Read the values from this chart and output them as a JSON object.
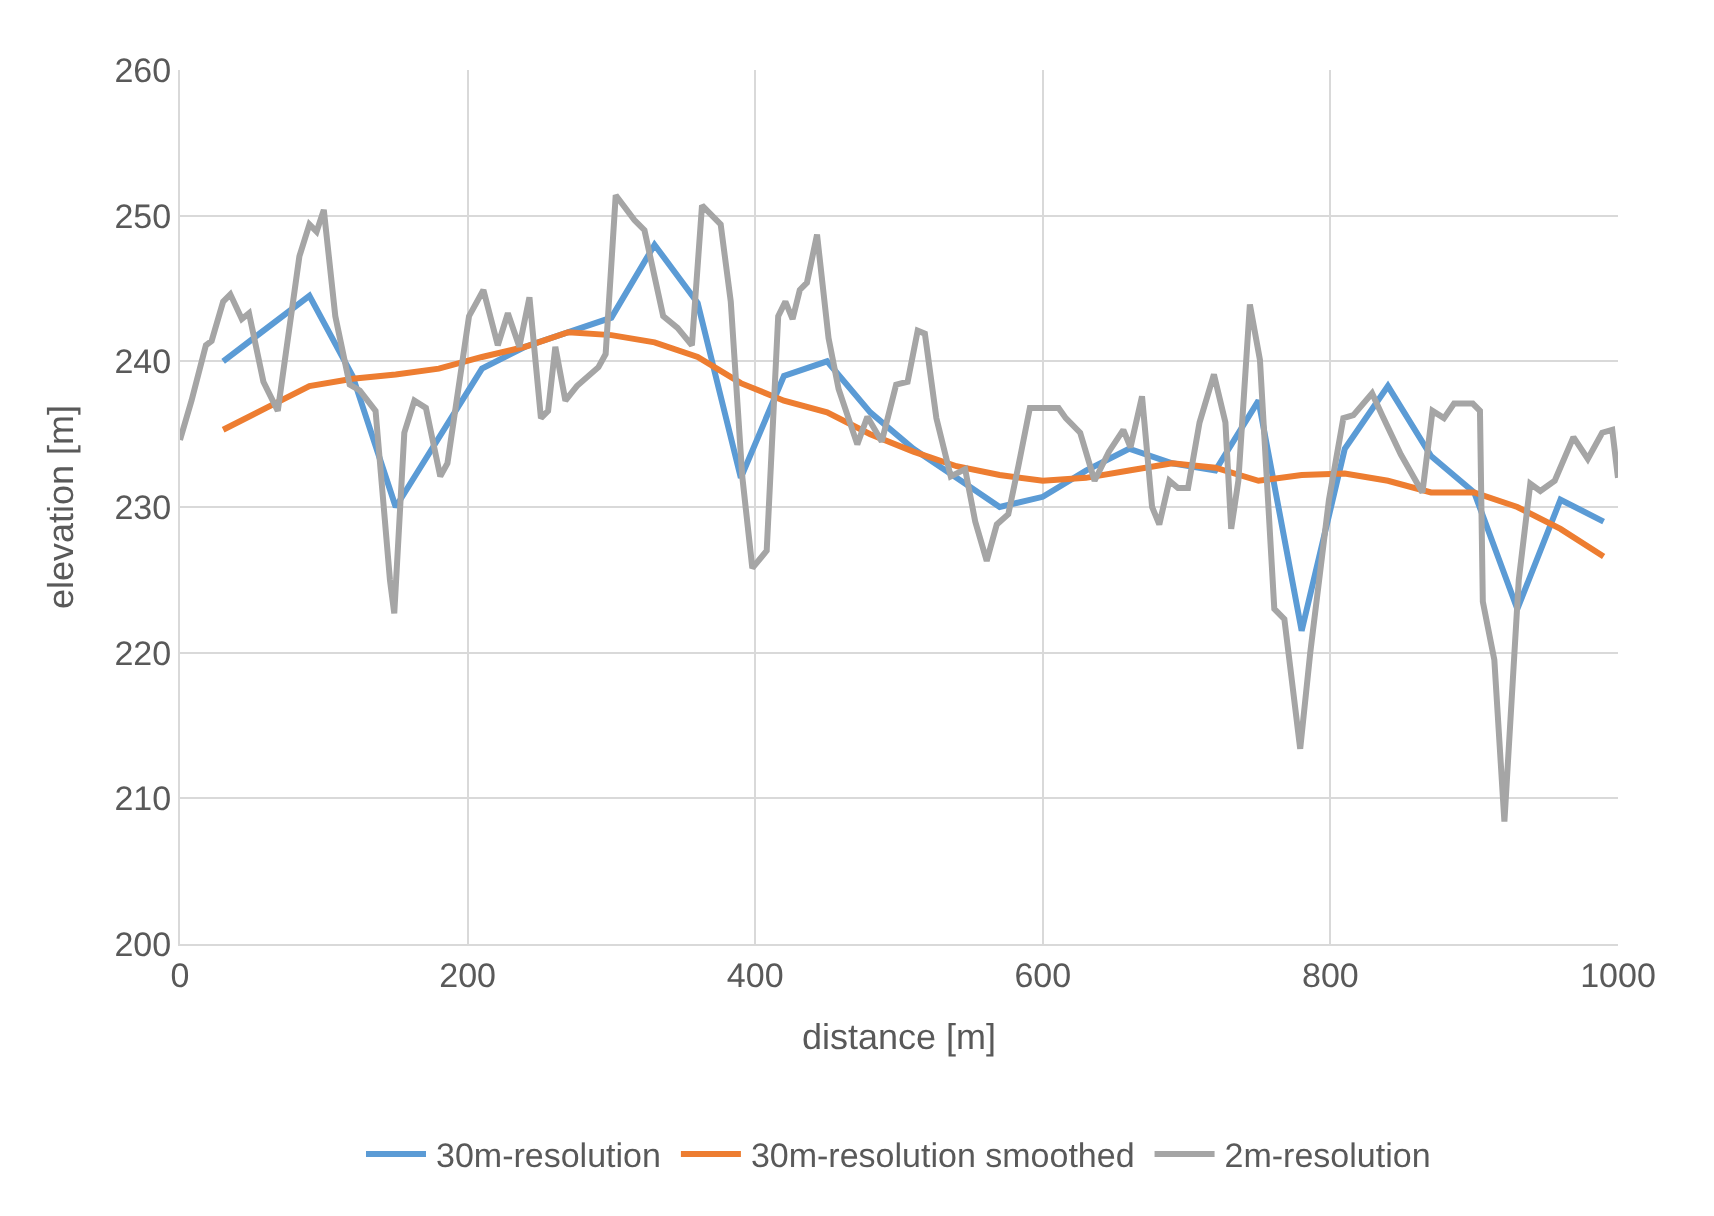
{
  "chart_data": {
    "type": "line",
    "xlabel": "distance [m]",
    "ylabel": "elevation [m]",
    "xlim": [
      0,
      1000
    ],
    "xticks": [
      0,
      200,
      400,
      600,
      800,
      1000
    ],
    "ylim": [
      200,
      260
    ],
    "yticks": [
      200,
      210,
      220,
      230,
      240,
      250,
      260
    ],
    "grid": true,
    "legend": "bottom",
    "marker": "none",
    "line_style": "solid",
    "series": [
      {
        "name": "30m-resolution",
        "color": "#5b9bd5",
        "x": [
          30,
          90,
          120,
          150,
          210,
          240,
          300,
          330,
          360,
          390,
          420,
          450,
          480,
          510,
          540,
          570,
          600,
          630,
          660,
          690,
          720,
          750,
          780,
          810,
          840,
          870,
          900,
          930,
          960,
          990
        ],
        "values": [
          240,
          244.5,
          239,
          230,
          239.5,
          241,
          243,
          248,
          244,
          232,
          239,
          240,
          236.5,
          234,
          232,
          230,
          230.7,
          232.5,
          234,
          233,
          232.5,
          237.3,
          221.5,
          234,
          238.3,
          233.5,
          231,
          223,
          230.5,
          229
        ]
      },
      {
        "name": "30m-resolution smoothed",
        "color": "#ed7d31",
        "x": [
          30,
          60,
          90,
          120,
          150,
          180,
          210,
          240,
          270,
          300,
          330,
          360,
          390,
          420,
          450,
          480,
          510,
          540,
          570,
          600,
          630,
          660,
          690,
          720,
          750,
          780,
          810,
          840,
          870,
          900,
          930,
          960,
          990
        ],
        "values": [
          235.3,
          236.8,
          238.3,
          238.8,
          239.1,
          239.5,
          240.3,
          241,
          242,
          241.8,
          241.3,
          240.3,
          238.5,
          237.3,
          236.5,
          235,
          233.8,
          232.8,
          232.2,
          231.8,
          232,
          232.5,
          233,
          232.7,
          231.8,
          232.2,
          232.3,
          231.8,
          231,
          231,
          230,
          228.5,
          226.6
        ]
      },
      {
        "name": "2m-resolution",
        "color": "#a5a5a5",
        "x": [
          0,
          8,
          18,
          22,
          30,
          35,
          43,
          48,
          58,
          68,
          83,
          90,
          95,
          100,
          108,
          118,
          125,
          136,
          146,
          149,
          156,
          163,
          171,
          181,
          186,
          201,
          211,
          221,
          228,
          236,
          243,
          251,
          256,
          261,
          268,
          276,
          291,
          296,
          303,
          316,
          323,
          336,
          346,
          356,
          363,
          376,
          383,
          391,
          398,
          408,
          416,
          421,
          426,
          431,
          436,
          443,
          451,
          458,
          471,
          478,
          488,
          498,
          506,
          513,
          518,
          526,
          536,
          546,
          553,
          561,
          568,
          576,
          583,
          591,
          601,
          611,
          616,
          626,
          636,
          646,
          656,
          661,
          669,
          676,
          681,
          688,
          694,
          701,
          709,
          719,
          727,
          731,
          736,
          744,
          751,
          761,
          768,
          779,
          786,
          799,
          809,
          816,
          829,
          836,
          849,
          864,
          871,
          879,
          886,
          899,
          904,
          906,
          914,
          921,
          931,
          939,
          946,
          956,
          969,
          979,
          989,
          996,
          1000
        ],
        "values": [
          234.6,
          237.3,
          241.1,
          241.4,
          244.1,
          244.6,
          242.9,
          243.3,
          238.6,
          236.6,
          247.2,
          249.4,
          248.9,
          250.4,
          243.1,
          238.4,
          238,
          236.6,
          225,
          222.7,
          235.1,
          237.3,
          236.8,
          232.1,
          233,
          243.1,
          244.9,
          241.1,
          243.3,
          241,
          244.4,
          236.1,
          236.6,
          241,
          237.3,
          238.3,
          239.6,
          240.5,
          251.4,
          249.7,
          249,
          243.1,
          242.3,
          241.1,
          250.7,
          249.4,
          244.1,
          232.1,
          225.8,
          227,
          243.1,
          244.1,
          242.9,
          244.9,
          245.4,
          248.7,
          241.6,
          238.1,
          234.3,
          236.2,
          234.5,
          238.4,
          238.6,
          242.1,
          241.9,
          236.1,
          232.1,
          232.6,
          229,
          226.3,
          228.8,
          229.5,
          232.8,
          236.8,
          236.8,
          236.8,
          236.1,
          235.1,
          231.8,
          233.8,
          235.3,
          234.1,
          237.6,
          230,
          228.8,
          231.8,
          231.3,
          231.3,
          235.8,
          239.1,
          235.8,
          228.5,
          231.8,
          243.9,
          240.1,
          223,
          222.3,
          213.4,
          220,
          230.5,
          236.1,
          236.3,
          237.8,
          236.3,
          233.6,
          231,
          236.6,
          236.1,
          237.1,
          237.1,
          236.6,
          223.5,
          219.5,
          208.4,
          225,
          231.6,
          231.1,
          231.8,
          234.8,
          233.3,
          235.1,
          235.3,
          232
        ]
      }
    ]
  }
}
